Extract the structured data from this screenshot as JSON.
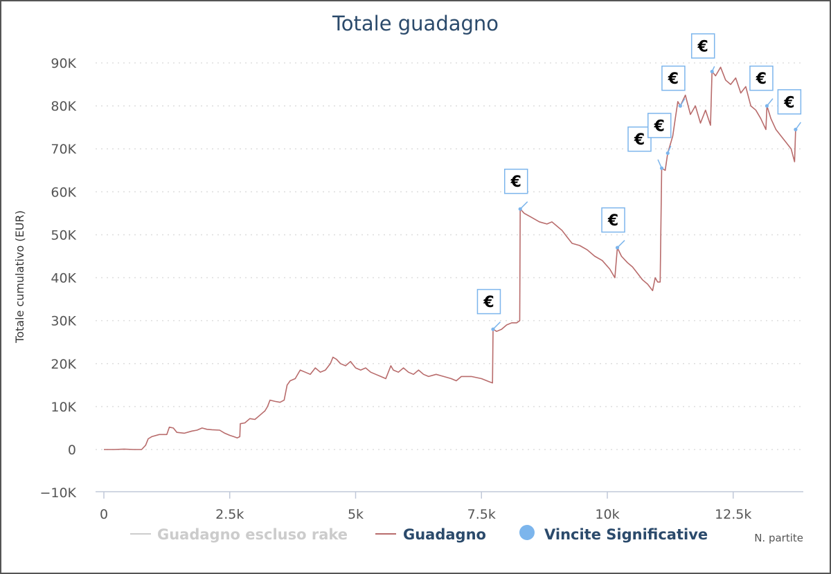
{
  "chart_data": {
    "type": "line",
    "title": "Totale guadagno",
    "ylabel": "Totale cumulativo (EUR)",
    "xlabel": "N. partite",
    "xlim": [
      -100,
      13800
    ],
    "ylim": [
      -10000,
      90000
    ],
    "x_ticks": [
      0,
      2500,
      5000,
      7500,
      10000,
      12500
    ],
    "x_tick_labels": [
      "0",
      "2.5k",
      "5k",
      "7.5k",
      "10k",
      "12.5k"
    ],
    "y_ticks": [
      -10000,
      0,
      10000,
      20000,
      30000,
      40000,
      50000,
      60000,
      70000,
      80000,
      90000
    ],
    "y_tick_labels": [
      "−10K",
      "0",
      "10K",
      "20K",
      "30K",
      "40K",
      "50K",
      "60K",
      "70K",
      "80K",
      "90K"
    ],
    "grid": true,
    "legend_position": "bottom",
    "legend": [
      {
        "name": "Guadagno escluso rake",
        "color": "#cccccc",
        "marker": "line",
        "hidden": true
      },
      {
        "name": "Guadagno",
        "color": "#b86b6b",
        "marker": "line"
      },
      {
        "name": "Vincite Significative",
        "color": "#7cb5ec",
        "marker": "circle"
      }
    ],
    "series": [
      {
        "name": "Guadagno",
        "color": "#b86b6b",
        "points": [
          [
            0,
            0
          ],
          [
            200,
            0
          ],
          [
            400,
            100
          ],
          [
            600,
            0
          ],
          [
            750,
            0
          ],
          [
            830,
            1000
          ],
          [
            880,
            2500
          ],
          [
            950,
            3000
          ],
          [
            1100,
            3500
          ],
          [
            1250,
            3500
          ],
          [
            1300,
            5200
          ],
          [
            1380,
            5000
          ],
          [
            1450,
            4000
          ],
          [
            1600,
            3800
          ],
          [
            1750,
            4300
          ],
          [
            1850,
            4500
          ],
          [
            1950,
            5000
          ],
          [
            2050,
            4700
          ],
          [
            2150,
            4600
          ],
          [
            2300,
            4500
          ],
          [
            2400,
            3800
          ],
          [
            2500,
            3300
          ],
          [
            2580,
            3000
          ],
          [
            2650,
            2700
          ],
          [
            2700,
            3000
          ],
          [
            2710,
            6000
          ],
          [
            2800,
            6200
          ],
          [
            2900,
            7200
          ],
          [
            3000,
            7000
          ],
          [
            3100,
            8000
          ],
          [
            3200,
            9000
          ],
          [
            3250,
            10000
          ],
          [
            3300,
            11500
          ],
          [
            3400,
            11200
          ],
          [
            3500,
            11000
          ],
          [
            3580,
            11500
          ],
          [
            3640,
            15000
          ],
          [
            3700,
            16000
          ],
          [
            3800,
            16500
          ],
          [
            3900,
            18500
          ],
          [
            4000,
            18000
          ],
          [
            4100,
            17500
          ],
          [
            4200,
            19000
          ],
          [
            4300,
            18000
          ],
          [
            4400,
            18500
          ],
          [
            4500,
            20000
          ],
          [
            4550,
            21500
          ],
          [
            4620,
            21000
          ],
          [
            4700,
            20000
          ],
          [
            4800,
            19500
          ],
          [
            4900,
            20500
          ],
          [
            5000,
            19000
          ],
          [
            5100,
            18500
          ],
          [
            5200,
            19000
          ],
          [
            5300,
            18000
          ],
          [
            5400,
            17500
          ],
          [
            5500,
            17000
          ],
          [
            5600,
            16500
          ],
          [
            5700,
            19500
          ],
          [
            5750,
            18500
          ],
          [
            5850,
            18000
          ],
          [
            5950,
            19000
          ],
          [
            6050,
            18000
          ],
          [
            6150,
            17500
          ],
          [
            6250,
            18500
          ],
          [
            6350,
            17500
          ],
          [
            6450,
            17000
          ],
          [
            6600,
            17500
          ],
          [
            6750,
            17000
          ],
          [
            6900,
            16500
          ],
          [
            7000,
            16000
          ],
          [
            7100,
            17000
          ],
          [
            7300,
            17000
          ],
          [
            7500,
            16500
          ],
          [
            7650,
            15800
          ],
          [
            7720,
            15500
          ],
          [
            7730,
            28000
          ],
          [
            7800,
            27500
          ],
          [
            7900,
            28000
          ],
          [
            8000,
            29000
          ],
          [
            8100,
            29500
          ],
          [
            8200,
            29500
          ],
          [
            8260,
            30000
          ],
          [
            8270,
            56000
          ],
          [
            8350,
            55000
          ],
          [
            8500,
            54000
          ],
          [
            8650,
            53000
          ],
          [
            8800,
            52500
          ],
          [
            8900,
            53000
          ],
          [
            9000,
            52000
          ],
          [
            9100,
            51000
          ],
          [
            9200,
            49500
          ],
          [
            9300,
            48000
          ],
          [
            9450,
            47500
          ],
          [
            9600,
            46500
          ],
          [
            9750,
            45000
          ],
          [
            9900,
            44000
          ],
          [
            10050,
            42000
          ],
          [
            10150,
            40000
          ],
          [
            10200,
            47000
          ],
          [
            10280,
            45000
          ],
          [
            10400,
            43500
          ],
          [
            10500,
            42500
          ],
          [
            10600,
            41000
          ],
          [
            10700,
            39500
          ],
          [
            10800,
            38500
          ],
          [
            10900,
            37000
          ],
          [
            10950,
            40000
          ],
          [
            11000,
            39000
          ],
          [
            11050,
            39000
          ],
          [
            11080,
            65500
          ],
          [
            11150,
            65000
          ],
          [
            11200,
            69000
          ],
          [
            11250,
            71000
          ],
          [
            11300,
            73000
          ],
          [
            11350,
            77000
          ],
          [
            11400,
            81000
          ],
          [
            11450,
            80000
          ],
          [
            11550,
            82500
          ],
          [
            11650,
            78000
          ],
          [
            11750,
            80000
          ],
          [
            11850,
            76000
          ],
          [
            11950,
            79000
          ],
          [
            12050,
            75500
          ],
          [
            12080,
            88000
          ],
          [
            12150,
            87000
          ],
          [
            12250,
            89000
          ],
          [
            12350,
            86000
          ],
          [
            12450,
            85000
          ],
          [
            12550,
            86500
          ],
          [
            12650,
            83000
          ],
          [
            12750,
            84500
          ],
          [
            12850,
            80000
          ],
          [
            12950,
            79000
          ],
          [
            13050,
            77000
          ],
          [
            13150,
            74500
          ],
          [
            13170,
            80000
          ],
          [
            13250,
            77000
          ],
          [
            13350,
            74500
          ],
          [
            13450,
            73000
          ],
          [
            13550,
            71500
          ],
          [
            13650,
            70000
          ],
          [
            13720,
            67000
          ],
          [
            13740,
            74500
          ]
        ]
      },
      {
        "name": "Vincite Significative",
        "color": "#7cb5ec",
        "type": "flags",
        "flag_text": "€",
        "points": [
          [
            7730,
            28000
          ],
          [
            8270,
            56000
          ],
          [
            10200,
            47000
          ],
          [
            11080,
            65500
          ],
          [
            11200,
            69000
          ],
          [
            11450,
            80000
          ],
          [
            12080,
            88000
          ],
          [
            13170,
            80000
          ],
          [
            13740,
            74500
          ]
        ]
      }
    ]
  }
}
